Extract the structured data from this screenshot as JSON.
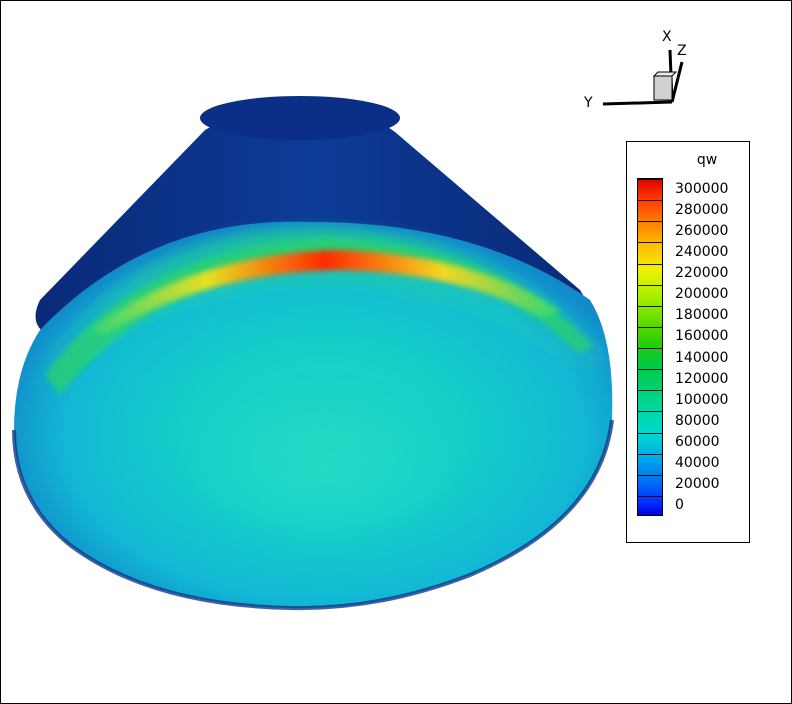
{
  "legend": {
    "title": "qw",
    "ticks": [
      "300000",
      "280000",
      "260000",
      "240000",
      "220000",
      "200000",
      "180000",
      "160000",
      "140000",
      "120000",
      "100000",
      "80000",
      "60000",
      "40000",
      "20000",
      "0"
    ]
  },
  "axes": {
    "x_label": "X",
    "y_label": "Y",
    "z_label": "Z"
  },
  "colors": {
    "low": "#0000ff",
    "mid": "#00c000",
    "high": "#ff0000"
  }
}
